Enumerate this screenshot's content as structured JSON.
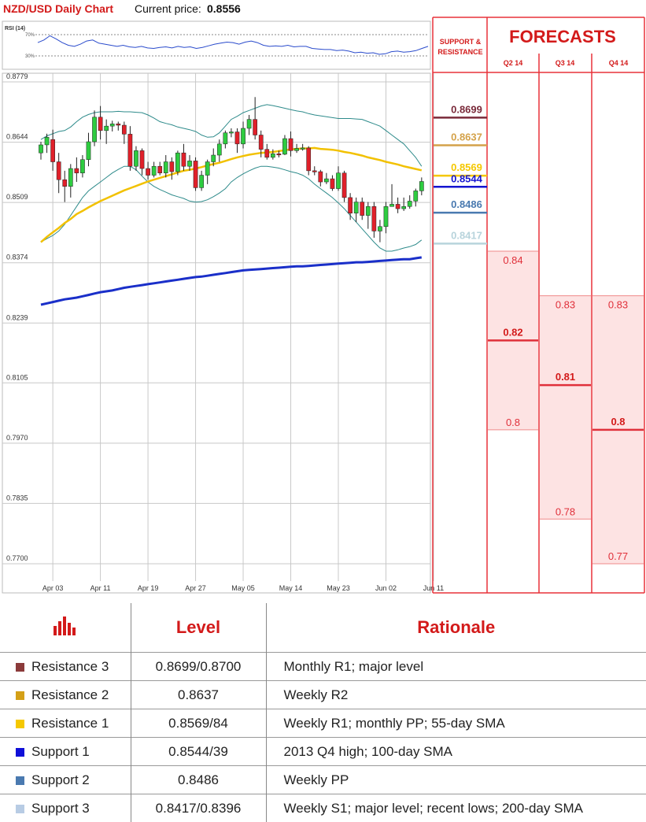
{
  "header": {
    "title": "NZD/USD Daily Chart",
    "price_label": "Current price:",
    "price_value": "0.8556"
  },
  "panels": {
    "sr_title_line1": "SUPPORT &",
    "sr_title_line2": "RESISTANCE",
    "forecasts_title": "FORECASTS",
    "quarters": [
      "Q2 14",
      "Q3 14",
      "Q4 14"
    ]
  },
  "colors": {
    "up": "#2ecc40",
    "down": "#e0202a",
    "sma55": "#f2c100",
    "sma200": "#1a2fc9",
    "bollinger": "#2e8b8b",
    "forecast_fill": "#fde3e3",
    "forecast_line": "#e0303a",
    "r3": "#7a2a3a",
    "r2": "#d4a24a",
    "r1": "#f5c800",
    "s1": "#1414d0",
    "s2": "#4a7ab0",
    "s3": "#b8d4dc"
  },
  "chart_data": {
    "type": "candlestick",
    "title": "NZD/USD Daily Chart",
    "ylim": [
      0.765,
      0.88
    ],
    "y_ticks": [
      "0.8779",
      "0.8644",
      "0.8509",
      "0.8374",
      "0.8239",
      "0.8105",
      "0.7970",
      "0.7835",
      "0.7700"
    ],
    "x_ticks": [
      "Apr 03",
      "Apr 11",
      "Apr 19",
      "Apr 27",
      "May 05",
      "May 14",
      "May 23",
      "Jun 02",
      "Jun 11"
    ],
    "x_tick_index": [
      2,
      10,
      18,
      26,
      34,
      42,
      50,
      58,
      66
    ],
    "candles": [
      [
        0.862,
        0.8638,
        0.8645,
        0.8605
      ],
      [
        0.8638,
        0.8655,
        0.8663,
        0.862
      ],
      [
        0.865,
        0.86,
        0.8672,
        0.858
      ],
      [
        0.86,
        0.856,
        0.862,
        0.853
      ],
      [
        0.856,
        0.8545,
        0.858,
        0.851
      ],
      [
        0.8545,
        0.8585,
        0.8595,
        0.852
      ],
      [
        0.8585,
        0.8575,
        0.861,
        0.8555
      ],
      [
        0.8575,
        0.8605,
        0.8615,
        0.8565
      ],
      [
        0.8605,
        0.8645,
        0.8665,
        0.859
      ],
      [
        0.8645,
        0.87,
        0.8715,
        0.8635
      ],
      [
        0.87,
        0.867,
        0.8725,
        0.865
      ],
      [
        0.867,
        0.868,
        0.8695,
        0.864
      ],
      [
        0.868,
        0.8685,
        0.8692,
        0.8668
      ],
      [
        0.8685,
        0.8682,
        0.869,
        0.867
      ],
      [
        0.8682,
        0.8662,
        0.869,
        0.864
      ],
      [
        0.8662,
        0.859,
        0.868,
        0.858
      ],
      [
        0.859,
        0.8625,
        0.8635,
        0.858
      ],
      [
        0.8625,
        0.8585,
        0.863,
        0.857
      ],
      [
        0.8585,
        0.857,
        0.86,
        0.856
      ],
      [
        0.857,
        0.859,
        0.86,
        0.8565
      ],
      [
        0.859,
        0.8575,
        0.86,
        0.857
      ],
      [
        0.8575,
        0.86,
        0.8615,
        0.8565
      ],
      [
        0.86,
        0.8578,
        0.861,
        0.856
      ],
      [
        0.8578,
        0.862,
        0.8625,
        0.857
      ],
      [
        0.862,
        0.859,
        0.864,
        0.858
      ],
      [
        0.859,
        0.8602,
        0.8615,
        0.858
      ],
      [
        0.8602,
        0.8542,
        0.861,
        0.8535
      ],
      [
        0.8542,
        0.857,
        0.858,
        0.8535
      ],
      [
        0.857,
        0.86,
        0.8605,
        0.855
      ],
      [
        0.86,
        0.8615,
        0.863,
        0.859
      ],
      [
        0.8615,
        0.864,
        0.865,
        0.86
      ],
      [
        0.864,
        0.8665,
        0.867,
        0.863
      ],
      [
        0.8665,
        0.8667,
        0.8675,
        0.8655
      ],
      [
        0.8667,
        0.864,
        0.8675,
        0.862
      ],
      [
        0.864,
        0.8675,
        0.869,
        0.863
      ],
      [
        0.8675,
        0.8695,
        0.8705,
        0.866
      ],
      [
        0.8695,
        0.866,
        0.8745,
        0.865
      ],
      [
        0.866,
        0.8628,
        0.867,
        0.861
      ],
      [
        0.8628,
        0.861,
        0.864,
        0.8605
      ],
      [
        0.861,
        0.8618,
        0.8628,
        0.8605
      ],
      [
        0.8618,
        0.8617,
        0.8625,
        0.861
      ],
      [
        0.8617,
        0.8652,
        0.866,
        0.8615
      ],
      [
        0.8652,
        0.8625,
        0.8668,
        0.8612
      ],
      [
        0.8625,
        0.863,
        0.864,
        0.862
      ],
      [
        0.863,
        0.8631,
        0.864,
        0.8625
      ],
      [
        0.8631,
        0.858,
        0.8635,
        0.857
      ],
      [
        0.858,
        0.8578,
        0.859,
        0.857
      ],
      [
        0.8578,
        0.8555,
        0.8582,
        0.8545
      ],
      [
        0.8555,
        0.8562,
        0.8575,
        0.855
      ],
      [
        0.8562,
        0.854,
        0.857,
        0.8535
      ],
      [
        0.854,
        0.8575,
        0.859,
        0.8535
      ],
      [
        0.8575,
        0.852,
        0.858,
        0.851
      ],
      [
        0.852,
        0.8485,
        0.853,
        0.847
      ],
      [
        0.8485,
        0.851,
        0.852,
        0.8465
      ],
      [
        0.851,
        0.848,
        0.852,
        0.847
      ],
      [
        0.848,
        0.85,
        0.851,
        0.845
      ],
      [
        0.85,
        0.8445,
        0.851,
        0.843
      ],
      [
        0.8445,
        0.8455,
        0.847,
        0.842
      ],
      [
        0.8455,
        0.85,
        0.851,
        0.844
      ],
      [
        0.85,
        0.8505,
        0.855,
        0.85
      ],
      [
        0.8505,
        0.8495,
        0.852,
        0.8485
      ],
      [
        0.8495,
        0.85,
        0.852,
        0.849
      ],
      [
        0.85,
        0.8512,
        0.8525,
        0.8495
      ],
      [
        0.8512,
        0.8535,
        0.854,
        0.85
      ],
      [
        0.8535,
        0.8556,
        0.8565,
        0.8525
      ]
    ],
    "series": [
      {
        "name": "55-day SMA",
        "values": [
          0.842,
          0.8432,
          0.8442,
          0.8452,
          0.8463,
          0.8472,
          0.8483,
          0.849,
          0.8498,
          0.8505,
          0.8512,
          0.8518,
          0.8524,
          0.853,
          0.8536,
          0.8541,
          0.8546,
          0.8551,
          0.8556,
          0.856,
          0.8564,
          0.8568,
          0.8572,
          0.8576,
          0.858,
          0.8582,
          0.8585,
          0.8588,
          0.8592,
          0.8595,
          0.8598,
          0.8602,
          0.8606,
          0.861,
          0.8613,
          0.8616,
          0.8618,
          0.862,
          0.8621,
          0.8622,
          0.8624,
          0.8626,
          0.8628,
          0.8629,
          0.863,
          0.863,
          0.8631,
          0.8629,
          0.8628,
          0.8627,
          0.8625,
          0.8622,
          0.862,
          0.8617,
          0.8614,
          0.861,
          0.8607,
          0.8604,
          0.86,
          0.8597,
          0.8594,
          0.859,
          0.8587,
          0.8584,
          0.8581
        ]
      },
      {
        "name": "200-day SMA",
        "values": [
          0.828,
          0.8283,
          0.8286,
          0.8289,
          0.8292,
          0.8294,
          0.8296,
          0.8299,
          0.8302,
          0.8305,
          0.8308,
          0.831,
          0.8312,
          0.8315,
          0.8318,
          0.832,
          0.8322,
          0.8324,
          0.8326,
          0.8328,
          0.833,
          0.8332,
          0.8334,
          0.8336,
          0.8338,
          0.834,
          0.8342,
          0.8343,
          0.8345,
          0.8347,
          0.8349,
          0.8351,
          0.8353,
          0.8355,
          0.8357,
          0.8358,
          0.8359,
          0.836,
          0.8361,
          0.8362,
          0.8363,
          0.8364,
          0.8365,
          0.8366,
          0.8366,
          0.8367,
          0.8368,
          0.8369,
          0.837,
          0.8371,
          0.8372,
          0.8373,
          0.8374,
          0.8375,
          0.8375,
          0.8376,
          0.8377,
          0.8378,
          0.8379,
          0.838,
          0.8381,
          0.8382,
          0.8382,
          0.8384,
          0.8386
        ]
      },
      {
        "name": "Bollinger upper",
        "values": [
          0.865,
          0.8658,
          0.8663,
          0.8668,
          0.867,
          0.8678,
          0.869,
          0.87,
          0.8706,
          0.871,
          0.8712,
          0.8712,
          0.8712,
          0.8713,
          0.8712,
          0.8712,
          0.8711,
          0.871,
          0.8705,
          0.8698,
          0.869,
          0.8686,
          0.8683,
          0.8678,
          0.8675,
          0.8672,
          0.8668,
          0.866,
          0.8655,
          0.8656,
          0.8665,
          0.868,
          0.8695,
          0.8702,
          0.871,
          0.8715,
          0.872,
          0.8725,
          0.8728,
          0.8726,
          0.8723,
          0.872,
          0.8717,
          0.8714,
          0.8712,
          0.8708,
          0.8705,
          0.8703,
          0.8701,
          0.8699,
          0.8697,
          0.8697,
          0.8697,
          0.8696,
          0.8695,
          0.869,
          0.8685,
          0.868,
          0.867,
          0.866,
          0.865,
          0.864,
          0.8625,
          0.861,
          0.859
        ]
      },
      {
        "name": "Bollinger lower",
        "values": [
          0.842,
          0.8428,
          0.8435,
          0.8445,
          0.846,
          0.848,
          0.85,
          0.852,
          0.8535,
          0.8545,
          0.8555,
          0.8565,
          0.8575,
          0.8583,
          0.859,
          0.859,
          0.8582,
          0.8568,
          0.8555,
          0.8545,
          0.8538,
          0.8532,
          0.8526,
          0.8522,
          0.8518,
          0.8512,
          0.851,
          0.8511,
          0.8515,
          0.8522,
          0.853,
          0.854,
          0.8555,
          0.8565,
          0.8573,
          0.858,
          0.8586,
          0.859,
          0.859,
          0.8588,
          0.8586,
          0.8582,
          0.8578,
          0.8575,
          0.857,
          0.8562,
          0.855,
          0.854,
          0.853,
          0.852,
          0.8508,
          0.8495,
          0.848,
          0.8465,
          0.845,
          0.8435,
          0.842,
          0.8407,
          0.84,
          0.84,
          0.8403,
          0.8407,
          0.841,
          0.8415,
          0.8425
        ]
      }
    ],
    "rsi": {
      "label": "RSI (14)",
      "levels": [
        "70%",
        "30%"
      ],
      "values": [
        55,
        60,
        68,
        62,
        55,
        50,
        48,
        52,
        58,
        60,
        54,
        52,
        50,
        48,
        50,
        47,
        46,
        48,
        45,
        44,
        46,
        47,
        45,
        48,
        46,
        47,
        44,
        46,
        49,
        52,
        54,
        56,
        55,
        52,
        56,
        58,
        55,
        50,
        48,
        49,
        48,
        50,
        47,
        48,
        48,
        44,
        43,
        42,
        42,
        40,
        41,
        39,
        36,
        37,
        35,
        36,
        33,
        34,
        38,
        39,
        37,
        38,
        40,
        44,
        48
      ]
    }
  },
  "levels": [
    {
      "id": "r3",
      "value": 0.8699,
      "label": "0.8699"
    },
    {
      "id": "r2",
      "value": 0.8637,
      "label": "0.8637"
    },
    {
      "id": "r1",
      "value": 0.8569,
      "label": "0.8569"
    },
    {
      "id": "s1",
      "value": 0.8544,
      "label": "0.8544"
    },
    {
      "id": "s2",
      "value": 0.8486,
      "label": "0.8486"
    },
    {
      "id": "s3",
      "value": 0.8417,
      "label": "0.8417"
    }
  ],
  "forecasts": [
    {
      "quarter": "Q2 14",
      "high": 0.84,
      "mid": 0.82,
      "low": 0.8,
      "high_label": "0.84",
      "mid_label": "0.82",
      "low_label": "0.8"
    },
    {
      "quarter": "Q3 14",
      "high": 0.83,
      "mid": 0.81,
      "low": 0.78,
      "high_label": "0.83",
      "mid_label": "0.81",
      "low_label": "0.78"
    },
    {
      "quarter": "Q4 14",
      "high": 0.83,
      "mid": 0.8,
      "low": 0.77,
      "high_label": "0.83",
      "mid_label": "0.8",
      "low_label": "0.77"
    }
  ],
  "table": {
    "headers": [
      "",
      "Level",
      "Rationale"
    ],
    "rows": [
      {
        "name": "Resistance 3",
        "level": "0.8699/0.8700",
        "rationale": "Monthly R1; major level",
        "color": "#8b3a3a"
      },
      {
        "name": "Resistance 2",
        "level": "0.8637",
        "rationale": "Weekly R2",
        "color": "#d4a017"
      },
      {
        "name": "Resistance 1",
        "level": "0.8569/84",
        "rationale": "Weekly R1; monthly PP; 55-day SMA",
        "color": "#f5c800"
      },
      {
        "name": "Support 1",
        "level": "0.8544/39",
        "rationale": "2013 Q4 high; 100-day SMA",
        "color": "#1010d8"
      },
      {
        "name": "Support 2",
        "level": "0.8486",
        "rationale": "Weekly PP",
        "color": "#4a7ab0"
      },
      {
        "name": "Support 3",
        "level": "0.8417/0.8396",
        "rationale": "Weekly S1; major level; recent lows; 200-day SMA",
        "color": "#b8cce4"
      }
    ]
  }
}
